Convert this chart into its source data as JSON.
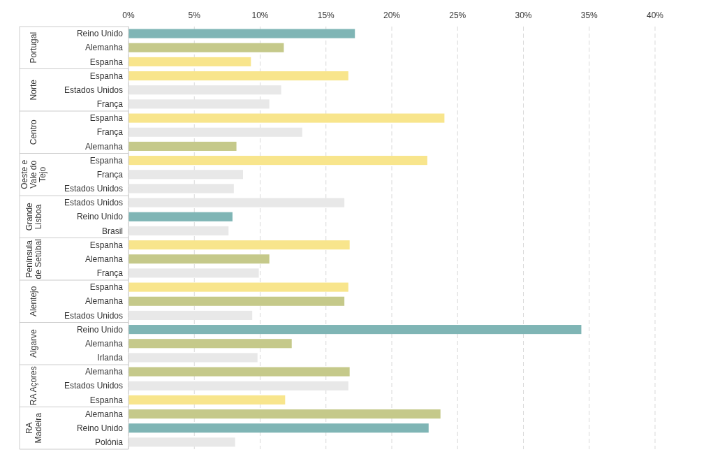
{
  "chart_data": {
    "type": "bar",
    "orientation": "horizontal",
    "categories": [
      "Reino Unido",
      "Alemanha",
      "Espanha",
      "Espanha",
      "Estados Unidos",
      "França",
      "Espanha",
      "França",
      "Alemanha",
      "Espanha",
      "França",
      "Estados Unidos",
      "Estados Unidos",
      "Reino Unido",
      "Brasil",
      "Espanha",
      "Alemanha",
      "França",
      "Espanha",
      "Alemanha",
      "Estados Unidos",
      "Reino Unido",
      "Alemanha",
      "Irlanda",
      "Alemanha",
      "Estados Unidos",
      "Espanha",
      "Alemanha",
      "Reino Unido",
      "Polónia"
    ],
    "values": [
      17.2,
      11.8,
      9.3,
      16.7,
      11.6,
      10.7,
      24.0,
      13.2,
      8.2,
      22.7,
      8.7,
      8.0,
      16.4,
      7.9,
      7.6,
      16.8,
      10.7,
      9.9,
      16.7,
      16.4,
      9.4,
      34.4,
      12.4,
      9.8,
      16.8,
      16.7,
      11.9,
      23.7,
      22.8,
      8.1
    ],
    "colors": [
      "#7fb5b5",
      "#c5c98a",
      "#f8e58c",
      "#f8e58c",
      "#e8e8e8",
      "#e8e8e8",
      "#f8e58c",
      "#e8e8e8",
      "#c5c98a",
      "#f8e58c",
      "#e8e8e8",
      "#e8e8e8",
      "#e8e8e8",
      "#7fb5b5",
      "#e8e8e8",
      "#f8e58c",
      "#c5c98a",
      "#e8e8e8",
      "#f8e58c",
      "#c5c98a",
      "#e8e8e8",
      "#7fb5b5",
      "#c5c98a",
      "#e8e8e8",
      "#c5c98a",
      "#e8e8e8",
      "#f8e58c",
      "#c5c98a",
      "#7fb5b5",
      "#e8e8e8"
    ],
    "annotations": [
      "Portugal",
      "Norte",
      "Centro",
      "Oeste e Vale do Tejo",
      "Grande Lisboa",
      "Península de Setúbal",
      "Alentejo",
      "Algarve",
      "RA Açores",
      "RA Madeira"
    ],
    "xlim": [
      0,
      40
    ],
    "xticks": [
      {
        "value": 0,
        "label": "0%"
      },
      {
        "value": 5,
        "label": "5%"
      },
      {
        "value": 10,
        "label": "10%"
      },
      {
        "value": 15,
        "label": "15%"
      },
      {
        "value": 20,
        "label": "20%"
      },
      {
        "value": 25,
        "label": "25%"
      },
      {
        "value": 30,
        "label": "30%"
      },
      {
        "value": 35,
        "label": "35%"
      },
      {
        "value": 40,
        "label": "40%"
      }
    ],
    "grid": "x"
  }
}
